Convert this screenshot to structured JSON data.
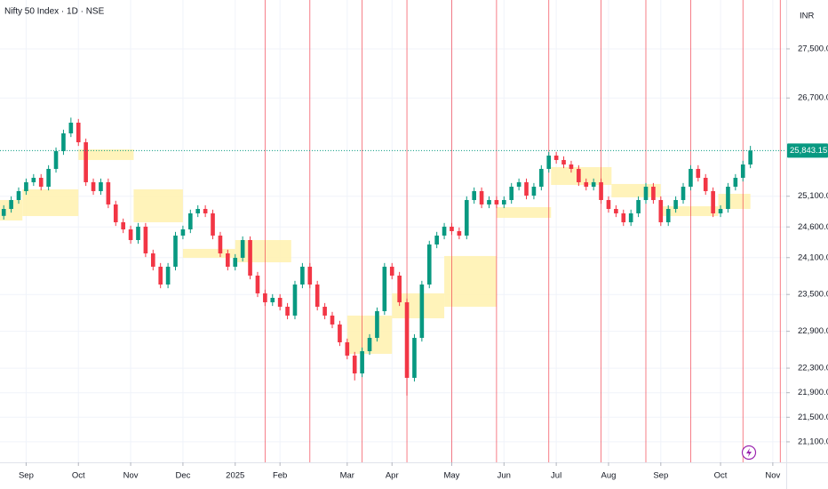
{
  "chart_data": {
    "type": "candlestick",
    "title": "Nifty 50 Index · 1D · NSE",
    "currency": "INR",
    "up_color": "#089981",
    "down_color": "#f23645",
    "zone_color": "#fff2b3",
    "vline_color": "#f23645",
    "grid": true,
    "xlim": [
      -0.5,
      104.8
    ],
    "ylim": [
      20766,
      28296
    ],
    "xticks": [
      {
        "value": 3,
        "label": "Sep"
      },
      {
        "value": 10,
        "label": "Oct"
      },
      {
        "value": 17,
        "label": "Nov"
      },
      {
        "value": 24,
        "label": "Dec"
      },
      {
        "value": 31,
        "label": "2025"
      },
      {
        "value": 37,
        "label": "Feb"
      },
      {
        "value": 46,
        "label": "Mar"
      },
      {
        "value": 52,
        "label": "Apr"
      },
      {
        "value": 60,
        "label": "May"
      },
      {
        "value": 67,
        "label": "Jun"
      },
      {
        "value": 74,
        "label": "Jul"
      },
      {
        "value": 81,
        "label": "Aug"
      },
      {
        "value": 88,
        "label": "Sep"
      },
      {
        "value": 96,
        "label": "Oct"
      },
      {
        "value": 103,
        "label": "Nov"
      }
    ],
    "yticks": [
      {
        "value": 27500,
        "label": "27,500.00"
      },
      {
        "value": 26700,
        "label": "26,700.00"
      },
      {
        "value": 25100,
        "label": "25,100.00"
      },
      {
        "value": 24600,
        "label": "24,600.00"
      },
      {
        "value": 24100,
        "label": "24,100.00"
      },
      {
        "value": 23500,
        "label": "23,500.00"
      },
      {
        "value": 22900,
        "label": "22,900.00"
      },
      {
        "value": 22300,
        "label": "22,300.00"
      },
      {
        "value": 21900,
        "label": "21,900.00"
      },
      {
        "value": 21500,
        "label": "21,500.00"
      },
      {
        "value": 21100,
        "label": "21,100.00"
      }
    ],
    "last_price": {
      "value": 25843.15,
      "label": "25,843.15"
    },
    "vlines": [
      35,
      41,
      48,
      54,
      60,
      66,
      73,
      80,
      86,
      92,
      99,
      104
    ],
    "zones": [
      {
        "start": -0.5,
        "end": 2.5,
        "low": 24705,
        "high": 25038
      },
      {
        "start": 2.5,
        "end": 10,
        "low": 24777,
        "high": 25212
      },
      {
        "start": 10,
        "end": 17.4,
        "low": 25690,
        "high": 25863
      },
      {
        "start": 17.4,
        "end": 24,
        "low": 24676,
        "high": 25212
      },
      {
        "start": 24,
        "end": 31,
        "low": 24097,
        "high": 24242
      },
      {
        "start": 31,
        "end": 38.5,
        "low": 24024,
        "high": 24386
      },
      {
        "start": 46,
        "end": 52,
        "low": 22533,
        "high": 23156
      },
      {
        "start": 52,
        "end": 59,
        "low": 23112,
        "high": 23518
      },
      {
        "start": 59,
        "end": 66,
        "low": 23300,
        "high": 24126
      },
      {
        "start": 66,
        "end": 73.3,
        "low": 24748,
        "high": 24922
      },
      {
        "start": 73.3,
        "end": 81.4,
        "low": 25284,
        "high": 25574
      },
      {
        "start": 81.4,
        "end": 88,
        "low": 25082,
        "high": 25299
      },
      {
        "start": 88,
        "end": 95.7,
        "low": 24777,
        "high": 24937
      },
      {
        "start": 95.7,
        "end": 100,
        "low": 24893,
        "high": 25139
      }
    ],
    "open": [
      24780,
      24893,
      25038,
      25183,
      25328,
      25400,
      25255,
      25545,
      25834,
      26124,
      26298,
      25979,
      25328,
      25183,
      25328,
      24966,
      24676,
      24560,
      24386,
      24604,
      24169,
      23952,
      23662,
      23952,
      24459,
      24560,
      24821,
      24893,
      24821,
      24459,
      24169,
      23952,
      24097,
      24386,
      23807,
      23518,
      23373,
      23445,
      23300,
      23156,
      23662,
      23952,
      23662,
      23300,
      23156,
      23011,
      22721,
      22504,
      22214,
      22576,
      22793,
      23228,
      23952,
      23807,
      23373,
      22142,
      22793,
      23662,
      24314,
      24459,
      24604,
      24531,
      24459,
      25038,
      25183,
      24966,
      25038,
      24966,
      25038,
      25255,
      25328,
      25110,
      25255,
      25545,
      25762,
      25690,
      25617,
      25545,
      25328,
      25255,
      25328,
      25038,
      24893,
      24821,
      24676,
      24821,
      25038,
      25255,
      25038,
      24676,
      24893,
      25038,
      25255,
      25545,
      25400,
      25183,
      24821,
      24893,
      25255,
      25400,
      25617
    ],
    "high": [
      24953,
      25098,
      25243,
      25388,
      25460,
      25460,
      25605,
      25894,
      26184,
      26380,
      26358,
      26039,
      25388,
      25388,
      25388,
      25026,
      24736,
      24620,
      24664,
      24664,
      24229,
      24012,
      24012,
      24519,
      24620,
      24881,
      24953,
      24953,
      24881,
      24519,
      24229,
      24157,
      24446,
      24446,
      23867,
      23578,
      23505,
      23505,
      23360,
      23722,
      24012,
      24012,
      23722,
      23360,
      23216,
      23071,
      22781,
      22564,
      22636,
      22853,
      23288,
      24012,
      24012,
      23867,
      23433,
      22853,
      23722,
      24374,
      24519,
      24664,
      24664,
      24591,
      25098,
      25243,
      25243,
      25098,
      25098,
      25098,
      25315,
      25388,
      25388,
      25315,
      25605,
      25822,
      25822,
      25750,
      25677,
      25605,
      25388,
      25388,
      25388,
      25098,
      24953,
      24881,
      24881,
      25098,
      25315,
      25315,
      25098,
      24953,
      25098,
      25315,
      25605,
      25605,
      25460,
      25243,
      24953,
      25315,
      25460,
      25677,
      25920
    ],
    "low": [
      24720,
      24833,
      24978,
      25123,
      25268,
      25195,
      25195,
      25485,
      25774,
      26064,
      25919,
      25268,
      25123,
      25123,
      24906,
      24616,
      24500,
      24326,
      24326,
      24109,
      23892,
      23602,
      23602,
      23892,
      24399,
      24500,
      24761,
      24761,
      24399,
      24109,
      23892,
      23892,
      24037,
      23747,
      23458,
      23313,
      23313,
      23240,
      23096,
      23096,
      23602,
      23602,
      23240,
      23096,
      22951,
      22661,
      22444,
      22100,
      22154,
      22516,
      22733,
      23168,
      23747,
      23313,
      21853,
      22082,
      22733,
      23602,
      24254,
      24399,
      24471,
      24399,
      24399,
      24978,
      24906,
      24906,
      24906,
      24906,
      24978,
      25195,
      25050,
      25050,
      25195,
      25485,
      25630,
      25557,
      25485,
      25268,
      25195,
      25195,
      24978,
      24833,
      24761,
      24616,
      24616,
      24761,
      24978,
      24978,
      24616,
      24616,
      24833,
      24978,
      25195,
      25340,
      25123,
      24761,
      24761,
      24833,
      25195,
      25340,
      25557
    ],
    "close": [
      24893,
      25038,
      25183,
      25328,
      25400,
      25255,
      25545,
      25834,
      26124,
      26298,
      25979,
      25328,
      25183,
      25328,
      24966,
      24676,
      24560,
      24386,
      24604,
      24169,
      23952,
      23662,
      23952,
      24459,
      24560,
      24821,
      24893,
      24821,
      24459,
      24169,
      23952,
      24097,
      24386,
      23807,
      23518,
      23373,
      23445,
      23300,
      23156,
      23662,
      23952,
      23662,
      23300,
      23156,
      23011,
      22721,
      22504,
      22214,
      22576,
      22793,
      23228,
      23952,
      23807,
      23373,
      22142,
      22793,
      23662,
      24314,
      24459,
      24604,
      24531,
      24459,
      25038,
      25183,
      24966,
      25038,
      24966,
      25038,
      25255,
      25328,
      25110,
      25255,
      25545,
      25762,
      25690,
      25617,
      25545,
      25328,
      25255,
      25328,
      25038,
      24893,
      24821,
      24676,
      24821,
      25038,
      25255,
      25038,
      24676,
      24893,
      25038,
      25255,
      25545,
      25400,
      25183,
      24821,
      24893,
      25255,
      25400,
      25617,
      25843.15
    ]
  }
}
